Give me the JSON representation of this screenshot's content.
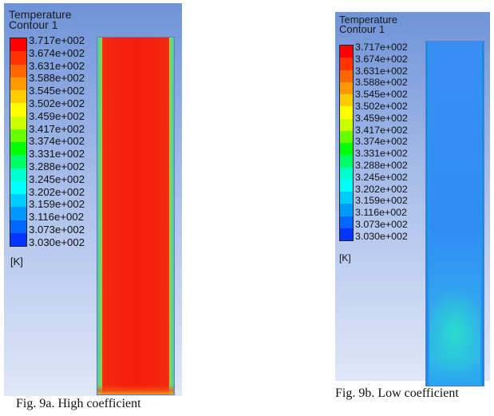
{
  "figure_a": {
    "title_line1": "Temperature",
    "title_line2": "Contour 1",
    "unit": "[K]",
    "caption": "Fig. 9a. High coefficient",
    "colorbar": {
      "labels": [
        "3.717e+002",
        "3.674e+002",
        "3.631e+002",
        "3.588e+002",
        "3.545e+002",
        "3.502e+002",
        "3.459e+002",
        "3.417e+002",
        "3.374e+002",
        "3.331e+002",
        "3.288e+002",
        "3.245e+002",
        "3.202e+002",
        "3.159e+002",
        "3.116e+002",
        "3.073e+002",
        "3.030e+002"
      ],
      "colors": [
        "#ff0000",
        "#ff3300",
        "#ff6600",
        "#ff9900",
        "#ffcc00",
        "#ffff00",
        "#ccff00",
        "#66ff00",
        "#00ff00",
        "#00ff66",
        "#00ffcc",
        "#00ffff",
        "#00ccff",
        "#0099ff",
        "#0066ff",
        "#0033ff"
      ]
    }
  },
  "figure_b": {
    "title_line1": "Temperature",
    "title_line2": "Contour 1",
    "unit": "[K]",
    "caption": "Fig. 9b. Low coefficient",
    "colorbar": {
      "labels": [
        "3.717e+002",
        "3.674e+002",
        "3.631e+002",
        "3.588e+002",
        "3.545e+002",
        "3.502e+002",
        "3.459e+002",
        "3.417e+002",
        "3.374e+002",
        "3.331e+002",
        "3.288e+002",
        "3.245e+002",
        "3.202e+002",
        "3.159e+002",
        "3.116e+002",
        "3.073e+002",
        "3.030e+002"
      ],
      "colors": [
        "#ff0000",
        "#ff3300",
        "#ff6600",
        "#ff9900",
        "#ffcc00",
        "#ffff00",
        "#ccff00",
        "#66ff00",
        "#00ff00",
        "#00ff66",
        "#00ffcc",
        "#00ffff",
        "#00ccff",
        "#0099ff",
        "#0066ff",
        "#0033ff"
      ]
    }
  }
}
